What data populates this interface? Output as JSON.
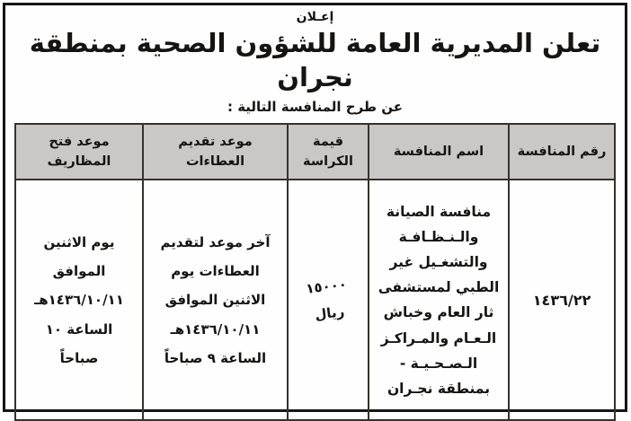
{
  "announcement": {
    "kicker": "إعـلان",
    "title": "تعلن المديرية العامة للشؤون الصحية بمنطقة نجران",
    "subtitle": "عن طرح المنافسة التالية :"
  },
  "table": {
    "headers": {
      "number": "رقم المنافسة",
      "name": "اسم المنافسة",
      "value": "قيمة\nالكراسة",
      "submission": "موعد تقديم\nالعطاءات",
      "opening": "موعد فتح المظاريف"
    },
    "row": {
      "number": "١٤٣٦/٢٢",
      "name": "منافسة الصيانة\nوالـنـظـافـة\nوالتشغـيل غير\nالطبي لمستشفى\nثار العام وخباش\nالـعـام والمـراكـز\nالـصـحـيـة -\nبمنطقة نجـران",
      "value": "١٥٠٠٠\nريال",
      "submission": "آخر موعد لتقديم\nالعطاءات يوم\nالاثنين الموافق\n١٤٣٦/١٠/١١هـ\nالساعة ٩ صباحاً",
      "opening": "يوم الاثنين\nالموافق\n١٤٣٦/١٠/١١هـ\nالساعة ١٠\nصباحاً"
    }
  },
  "colors": {
    "header_bg": "#cac7c4",
    "table_border": "#35322e",
    "frame_border": "#161616",
    "text": "#151412"
  }
}
